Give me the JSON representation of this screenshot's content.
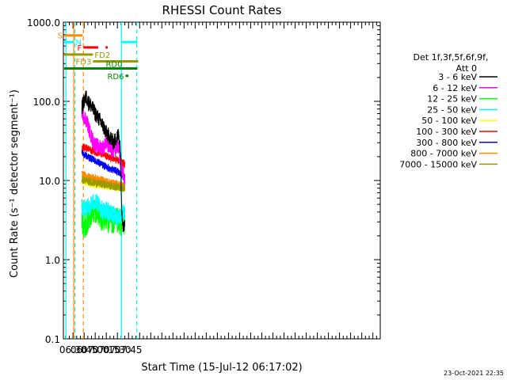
{
  "chart_data": {
    "type": "line",
    "title": "RHESSI Count Rates",
    "xlabel": "Start Time (15-Jul-12 06:17:02)",
    "ylabel": "Count Rate (s⁻¹ detector segment⁻¹)",
    "ylim": [
      0.1,
      1000
    ],
    "yscale": "log",
    "xlim_minutes": [
      377,
      805
    ],
    "x_ticks": [
      {
        "label": "06:30",
        "t": 390
      },
      {
        "label": "06:45",
        "t": 405
      },
      {
        "label": "07:00",
        "t": 420
      },
      {
        "label": "07:15",
        "t": 435
      },
      {
        "label": "07:30",
        "t": 450
      },
      {
        "label": "07:45",
        "t": 465
      }
    ],
    "y_ticks": [
      {
        "label": "0.1",
        "v": 0.1
      },
      {
        "label": "1.0",
        "v": 1
      },
      {
        "label": "10.0",
        "v": 10
      },
      {
        "label": "100.0",
        "v": 100
      },
      {
        "label": "1000.0",
        "v": 1000
      }
    ],
    "legend_header": [
      "Det 1f,3f,5f,6f,9f,",
      "Att 0"
    ],
    "legend_position": "right",
    "series": [
      {
        "name": "3 - 6 keV",
        "color": "#000000",
        "noise": 0.1,
        "points": [
          [
            402,
            85
          ],
          [
            405,
            100
          ],
          [
            408,
            115
          ],
          [
            411,
            95
          ],
          [
            414,
            90
          ],
          [
            420,
            70
          ],
          [
            425,
            60
          ],
          [
            430,
            50
          ],
          [
            435,
            40
          ],
          [
            440,
            35
          ],
          [
            445,
            30
          ],
          [
            449,
            35
          ],
          [
            452,
            38
          ],
          [
            454,
            25
          ],
          [
            456,
            4
          ],
          [
            458,
            2.5
          ],
          [
            460,
            3
          ]
        ]
      },
      {
        "name": "6 - 12 keV",
        "color": "#ff00ff",
        "noise": 0.1,
        "points": [
          [
            402,
            75
          ],
          [
            405,
            65
          ],
          [
            409,
            55
          ],
          [
            413,
            40
          ],
          [
            418,
            30
          ],
          [
            423,
            27
          ],
          [
            428,
            26
          ],
          [
            432,
            27
          ],
          [
            435,
            32
          ],
          [
            438,
            27
          ],
          [
            442,
            24
          ],
          [
            446,
            24
          ],
          [
            450,
            28
          ],
          [
            452,
            27
          ],
          [
            454,
            15
          ],
          [
            458,
            12
          ],
          [
            460,
            10
          ]
        ]
      },
      {
        "name": "12 - 25 keV",
        "color": "#00ff00",
        "noise": 0.18,
        "points": [
          [
            402,
            3
          ],
          [
            406,
            2.8
          ],
          [
            410,
            3.2
          ],
          [
            414,
            4
          ],
          [
            418,
            4.2
          ],
          [
            422,
            4.5
          ],
          [
            426,
            3.6
          ],
          [
            430,
            3.2
          ],
          [
            434,
            3.5
          ],
          [
            438,
            3.2
          ],
          [
            442,
            3.2
          ],
          [
            446,
            2.9
          ],
          [
            450,
            3.0
          ],
          [
            454,
            3.0
          ],
          [
            458,
            3.0
          ],
          [
            460,
            3.2
          ]
        ]
      },
      {
        "name": "25 - 50 keV",
        "color": "#00ffff",
        "noise": 0.12,
        "points": [
          [
            402,
            4.5
          ],
          [
            406,
            4.4
          ],
          [
            410,
            4.5
          ],
          [
            414,
            5
          ],
          [
            418,
            5.3
          ],
          [
            422,
            5.1
          ],
          [
            426,
            4.6
          ],
          [
            430,
            4.2
          ],
          [
            434,
            4.2
          ],
          [
            438,
            4.0
          ],
          [
            442,
            3.7
          ],
          [
            446,
            3.6
          ],
          [
            450,
            3.5
          ],
          [
            454,
            3.6
          ],
          [
            458,
            3.8
          ],
          [
            460,
            3.7
          ]
        ]
      },
      {
        "name": "50 - 100 keV",
        "color": "#ffff00",
        "noise": 0.06,
        "points": [
          [
            402,
            10
          ],
          [
            410,
            9.6
          ],
          [
            418,
            9.2
          ],
          [
            426,
            8.9
          ],
          [
            434,
            8.7
          ],
          [
            442,
            8.5
          ],
          [
            450,
            8.4
          ],
          [
            456,
            8.3
          ],
          [
            460,
            8.2
          ]
        ]
      },
      {
        "name": "100 - 300 keV",
        "color": "#ff0000",
        "noise": 0.05,
        "points": [
          [
            402,
            27
          ],
          [
            410,
            25
          ],
          [
            418,
            23.5
          ],
          [
            426,
            22
          ],
          [
            434,
            20.5
          ],
          [
            442,
            19
          ],
          [
            450,
            18
          ],
          [
            456,
            17
          ],
          [
            460,
            16
          ]
        ]
      },
      {
        "name": "300 - 800 keV",
        "color": "#0000ff",
        "noise": 0.05,
        "points": [
          [
            402,
            22
          ],
          [
            410,
            20
          ],
          [
            418,
            18
          ],
          [
            426,
            16.5
          ],
          [
            434,
            15
          ],
          [
            442,
            14
          ],
          [
            450,
            13
          ],
          [
            456,
            12
          ],
          [
            460,
            11
          ]
        ]
      },
      {
        "name": "800 - 7000 keV",
        "color": "#ff8800",
        "noise": 0.05,
        "points": [
          [
            402,
            12
          ],
          [
            410,
            11.2
          ],
          [
            418,
            10.8
          ],
          [
            426,
            10.3
          ],
          [
            434,
            9.8
          ],
          [
            442,
            9.4
          ],
          [
            450,
            9.0
          ],
          [
            456,
            8.7
          ],
          [
            460,
            8.6
          ]
        ]
      },
      {
        "name": "7000 - 15000 keV",
        "color": "#999900",
        "noise": 0.05,
        "points": [
          [
            402,
            10.2
          ],
          [
            410,
            9.8
          ],
          [
            418,
            9.4
          ],
          [
            426,
            9.1
          ],
          [
            434,
            8.8
          ],
          [
            442,
            8.5
          ],
          [
            450,
            8.3
          ],
          [
            456,
            8.1
          ],
          [
            460,
            8.0
          ]
        ]
      }
    ],
    "vertical_lines": [
      {
        "t": 380.5,
        "color": "#00ffff",
        "dashed": false
      },
      {
        "t": 392.5,
        "color": "#00ffff",
        "dashed": true
      },
      {
        "t": 391.0,
        "color": "#ff8800",
        "dashed": false
      },
      {
        "t": 404.0,
        "color": "#ff8800",
        "dashed": true
      },
      {
        "t": 455.5,
        "color": "#00ffff",
        "dashed": false
      },
      {
        "t": 476.0,
        "color": "#00ffff",
        "dashed": true
      }
    ],
    "flag_bars": [
      {
        "label": "S",
        "color": "#ff8800",
        "t0": 378,
        "t1": 403,
        "v": 680,
        "text_side": "left"
      },
      {
        "label": "N",
        "color": "#00ffff",
        "t0": 378,
        "t1": 391.5,
        "v": 560,
        "text_side": "right"
      },
      {
        "label": "",
        "color": "#00ffff",
        "t0": 456,
        "t1": 477,
        "v": 560,
        "text_side": "none"
      },
      {
        "label": "F",
        "color": "#ff0000",
        "t0": 404,
        "t1": 424,
        "v": 480,
        "text_side": "left"
      },
      {
        "label": "",
        "color": "#ff0000",
        "t0": 434,
        "t1": 437,
        "v": 480,
        "text_side": "none"
      },
      {
        "label": "FD2",
        "color": "#999900",
        "t0": 378,
        "t1": 417,
        "v": 390,
        "text_side": "right"
      },
      {
        "label": "FD3",
        "color": "#999900",
        "t0": 417,
        "t1": 478,
        "v": 320,
        "text_side": "left"
      },
      {
        "label": "RD0",
        "color": "#008800",
        "t0": 378,
        "t1": 477,
        "v": 260,
        "text_side": "right-above"
      },
      {
        "label": "RD6",
        "color": "#008800",
        "t0": 461,
        "t1": 465,
        "v": 210,
        "text_side": "left"
      }
    ]
  },
  "footer_timestamp": "23-Oct-2021 22:35"
}
